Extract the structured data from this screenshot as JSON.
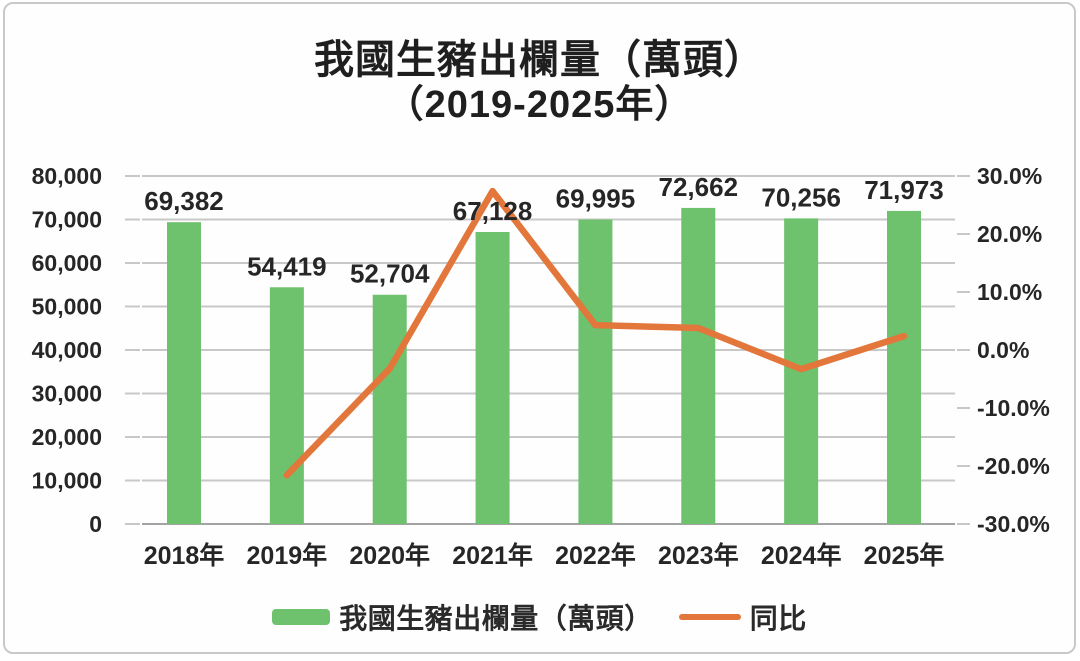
{
  "title": {
    "line1": "我國生豬出欄量（萬頭）",
    "line2": "（2019-2025年）"
  },
  "legend": {
    "bar_label": "我國生豬出欄量（萬頭）",
    "line_label": "同比"
  },
  "colors": {
    "bar": "#6ec16d",
    "line": "#e2763b",
    "grid": "#c8c8c8",
    "baseline": "#a3a3a3",
    "text": "#262626",
    "border": "#c9c9c9",
    "background": "#fefefe"
  },
  "chart_data": {
    "type": "bar",
    "subtype": "combo-bar-line",
    "title": "我國生豬出欄量（萬頭）（2019-2025年）",
    "categories": [
      "2018年",
      "2019年",
      "2020年",
      "2021年",
      "2022年",
      "2023年",
      "2024年",
      "2025年"
    ],
    "series": [
      {
        "name": "我國生豬出欄量（萬頭）",
        "type": "bar",
        "axis": "left",
        "values": [
          69382,
          54419,
          52704,
          67128,
          69995,
          72662,
          70256,
          71973
        ],
        "value_labels": [
          "69,382",
          "54,419",
          "52,704",
          "67,128",
          "69,995",
          "72,662",
          "70,256",
          "71,973"
        ],
        "color": "#6ec16d"
      },
      {
        "name": "同比",
        "type": "line",
        "axis": "right",
        "values": [
          null,
          -21.6,
          -3.2,
          27.4,
          4.3,
          3.8,
          -3.3,
          2.4
        ],
        "color": "#e2763b"
      }
    ],
    "left_axis": {
      "min": 0,
      "max": 80000,
      "tick_labels": [
        "80,000",
        "70,000",
        "60,000",
        "50,000",
        "40,000",
        "30,000",
        "20,000",
        "10,000",
        "0"
      ]
    },
    "right_axis": {
      "min": -30,
      "max": 30,
      "tick_labels": [
        "30.0%",
        "20.0%",
        "10.0%",
        "0.0%",
        "-10.0%",
        "-20.0%",
        "-30.0%"
      ]
    },
    "grid": true,
    "legend_position": "bottom"
  }
}
